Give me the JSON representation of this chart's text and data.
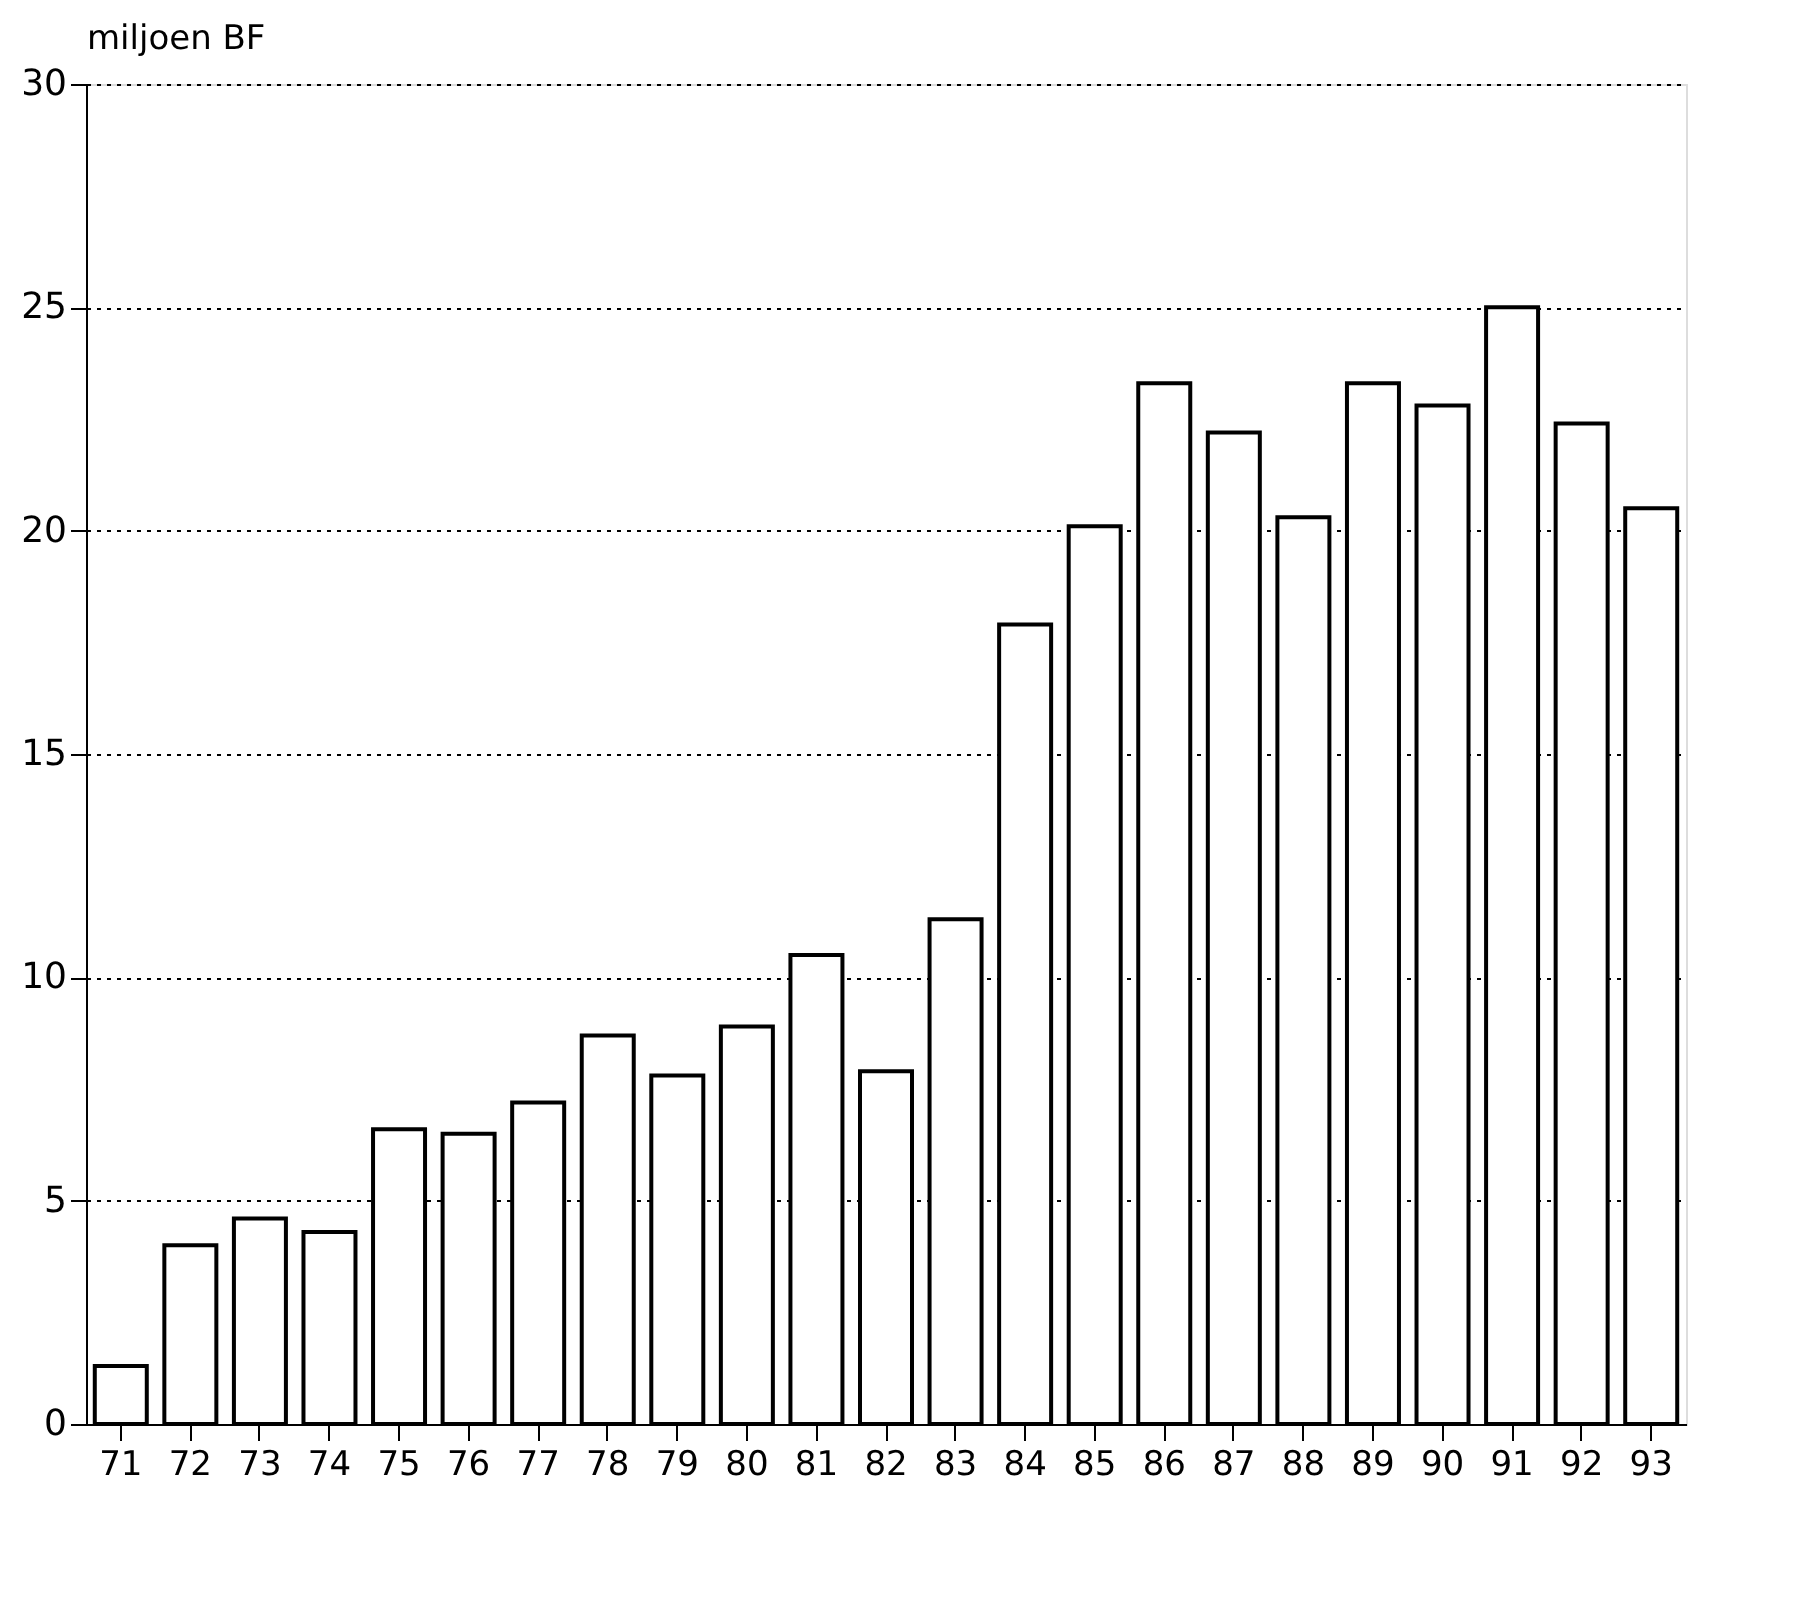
{
  "chart_data": {
    "type": "bar",
    "ylabel": "miljoen BF",
    "categories": [
      "71",
      "72",
      "73",
      "74",
      "75",
      "76",
      "77",
      "78",
      "79",
      "80",
      "81",
      "82",
      "83",
      "84",
      "85",
      "86",
      "87",
      "88",
      "89",
      "90",
      "91",
      "92",
      "93"
    ],
    "values": [
      1.3,
      4.0,
      4.6,
      4.3,
      6.6,
      6.5,
      7.2,
      8.7,
      7.8,
      8.9,
      10.5,
      7.9,
      11.3,
      17.9,
      20.1,
      23.3,
      22.2,
      20.3,
      23.3,
      22.8,
      25.0,
      22.4,
      20.5
    ],
    "color": "#ffffff",
    "ylim": [
      0,
      30
    ],
    "yticks": [
      0,
      5,
      10,
      15,
      20,
      25,
      30
    ],
    "grid": "y"
  }
}
